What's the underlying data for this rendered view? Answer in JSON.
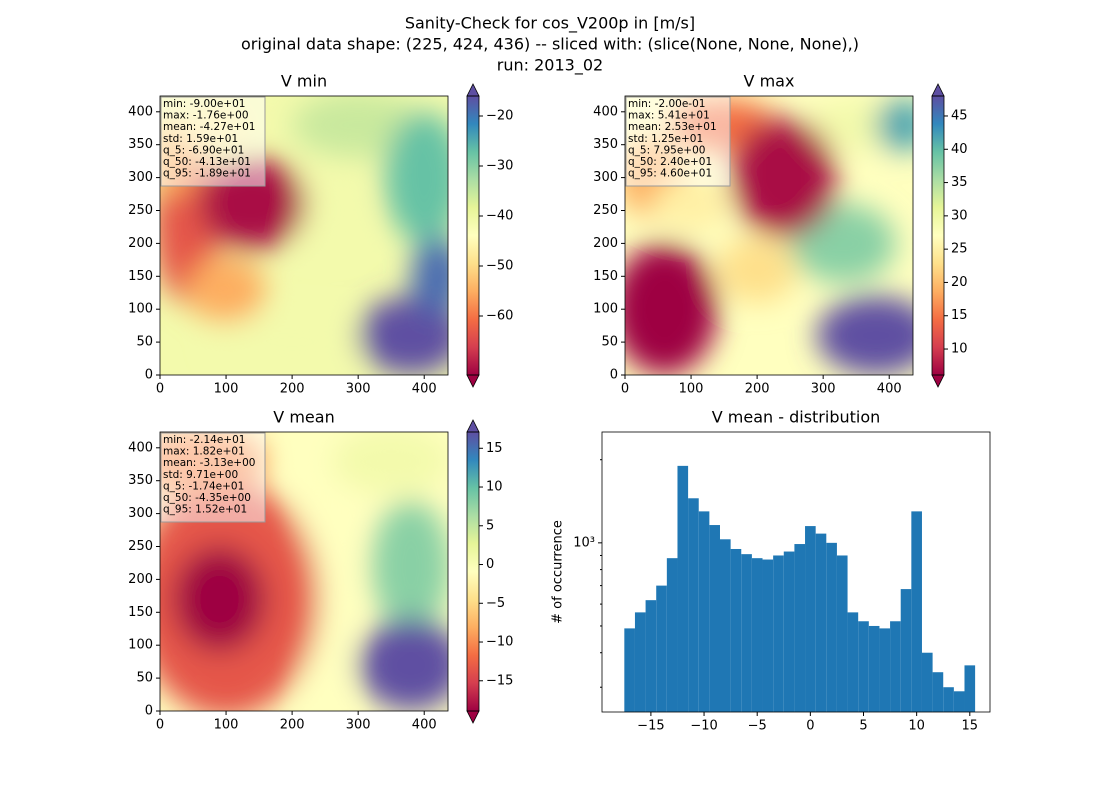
{
  "suptitle": [
    "Sanity-Check for cos_V200p in [m/s]",
    "original data shape: (225, 424, 436) -- sliced with: (slice(None, None, None),)",
    "run: 2013_02"
  ],
  "colormap": [
    "#9e0142",
    "#d53e4f",
    "#f46d43",
    "#fdae61",
    "#fee08b",
    "#ffffbf",
    "#e6f598",
    "#abdda4",
    "#66c2a5",
    "#3288bd",
    "#5e4fa2"
  ],
  "chart_data": [
    {
      "type": "heatmap",
      "title": "V min",
      "xlim": [
        0,
        436
      ],
      "ylim": [
        0,
        424
      ],
      "xticks": [
        0,
        100,
        200,
        300,
        400
      ],
      "yticks": [
        0,
        50,
        100,
        150,
        200,
        250,
        300,
        350,
        400
      ],
      "colorbar": {
        "lim": [
          -71.8,
          -16
        ],
        "ticks": [
          {
            "value": -20,
            "label": "−20"
          },
          {
            "value": -30,
            "label": "−30"
          },
          {
            "value": -40,
            "label": "−40"
          },
          {
            "value": -50,
            "label": "−50"
          },
          {
            "value": -60,
            "label": "−60"
          }
        ]
      },
      "stats": [
        "min: -9.00e+01",
        "max: -1.76e+00",
        "mean: -4.27e+01",
        "std: 1.59e+01",
        "q_5: -6.90e+01",
        "q_50: -4.13e+01",
        "q_95: -1.89e+01"
      ]
    },
    {
      "type": "heatmap",
      "title": "V max",
      "xlim": [
        0,
        436
      ],
      "ylim": [
        0,
        424
      ],
      "xticks": [
        0,
        100,
        200,
        300,
        400
      ],
      "yticks": [
        0,
        50,
        100,
        150,
        200,
        250,
        300,
        350,
        400
      ],
      "colorbar": {
        "lim": [
          6.1,
          48
        ],
        "ticks": [
          10,
          15,
          20,
          25,
          30,
          35,
          40,
          45
        ]
      },
      "stats": [
        "min: -2.00e-01",
        "max: 5.41e+01",
        "mean: 2.53e+01",
        "std: 1.25e+01",
        "q_5: 7.95e+00",
        "q_50: 2.40e+01",
        "q_95: 4.60e+01"
      ]
    },
    {
      "type": "heatmap",
      "title": "V mean",
      "xlim": [
        0,
        436
      ],
      "ylim": [
        0,
        424
      ],
      "xticks": [
        0,
        100,
        200,
        300,
        400
      ],
      "yticks": [
        0,
        50,
        100,
        150,
        200,
        250,
        300,
        350,
        400
      ],
      "colorbar": {
        "lim": [
          -18.9,
          17.1
        ],
        "ticks": [
          {
            "value": -15,
            "label": "−15"
          },
          {
            "value": -10,
            "label": "−10"
          },
          {
            "value": -5,
            "label": "−5"
          },
          0,
          5,
          10,
          15
        ]
      },
      "stats": [
        "min: -2.14e+01",
        "max: 1.82e+01",
        "mean: -3.13e+00",
        "std: 9.71e+00",
        "q_5: -1.74e+01",
        "q_50: -4.35e+00",
        "q_95: 1.52e+01"
      ]
    },
    {
      "type": "histogram",
      "title": "V mean - distribution",
      "ylabel": "# of occurrence",
      "color": "#1f77b4",
      "log_y": true,
      "bins": [
        -17.5,
        -16.5,
        -15.5,
        -14.5,
        -13.5,
        -12.5,
        -11.5,
        -10.5,
        -9.5,
        -8.5,
        -7.5,
        -6.5,
        -5.5,
        -4.5,
        -3.5,
        -2.5,
        -1.5,
        -0.5,
        0.5,
        1.5,
        2.5,
        3.5,
        4.5,
        5.5,
        6.5,
        7.5,
        8.5,
        9.5,
        10.5,
        11.5,
        12.5,
        13.5,
        14.5,
        15.5
      ],
      "values": [
        490,
        560,
        620,
        700,
        880,
        1900,
        1450,
        1300,
        1160,
        1030,
        950,
        910,
        880,
        870,
        900,
        930,
        990,
        1150,
        1080,
        1000,
        900,
        560,
        520,
        500,
        490,
        520,
        680,
        1300,
        400,
        340,
        300,
        290,
        360
      ],
      "xlim": [
        -19.6,
        16.9
      ],
      "ylim": [
        244,
        2520
      ],
      "xticks": [
        {
          "value": -15,
          "label": "−15"
        },
        {
          "value": -10,
          "label": "−10"
        },
        {
          "value": -5,
          "label": "−5"
        },
        0,
        5,
        10,
        15
      ],
      "yticks": [
        {
          "value": 1000,
          "label": "10³"
        }
      ],
      "yminorticks": [
        300,
        400,
        500,
        600,
        700,
        800,
        900,
        2000
      ]
    }
  ]
}
